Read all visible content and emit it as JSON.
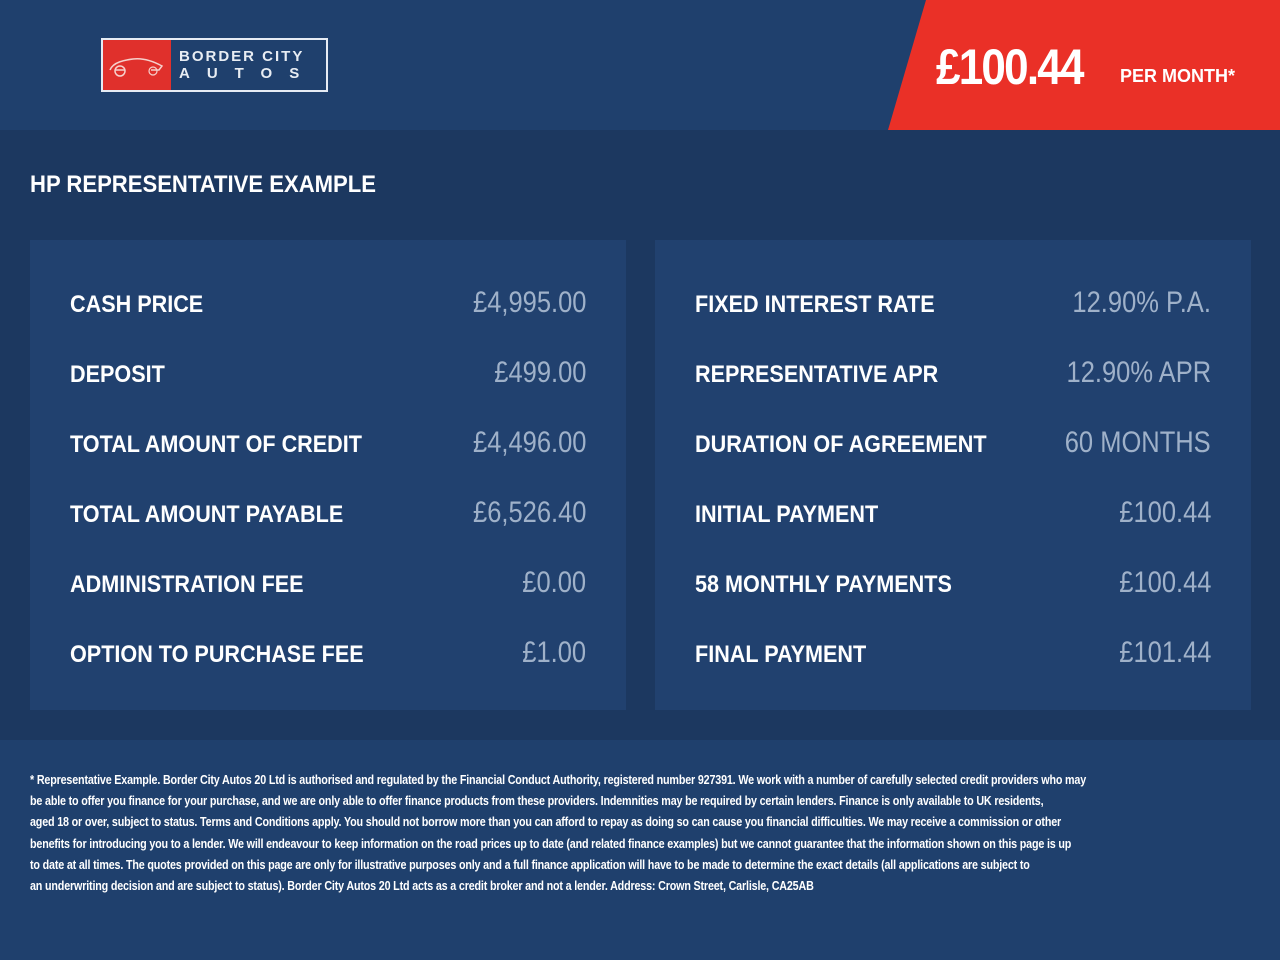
{
  "header": {
    "logo": {
      "line1": "BORDER CITY",
      "line2": "AUTOS"
    },
    "price": "£100.44",
    "price_suffix": "PER MONTH*"
  },
  "title": "HP REPRESENTATIVE EXAMPLE",
  "left_panel": [
    {
      "label": "CASH PRICE",
      "value": "£4,995.00"
    },
    {
      "label": "DEPOSIT",
      "value": "£499.00"
    },
    {
      "label": "TOTAL AMOUNT OF CREDIT",
      "value": "£4,496.00"
    },
    {
      "label": "TOTAL AMOUNT PAYABLE",
      "value": "£6,526.40"
    },
    {
      "label": "ADMINISTRATION FEE",
      "value": "£0.00"
    },
    {
      "label": "OPTION TO PURCHASE FEE",
      "value": "£1.00"
    }
  ],
  "right_panel": [
    {
      "label": "FIXED INTEREST RATE",
      "value": "12.90% P.A."
    },
    {
      "label": "REPRESENTATIVE APR",
      "value": "12.90% APR"
    },
    {
      "label": "DURATION OF AGREEMENT",
      "value": "60 MONTHS"
    },
    {
      "label": "INITIAL PAYMENT",
      "value": "£100.44"
    },
    {
      "label": "58 MONTHLY PAYMENTS",
      "value": "£100.44"
    },
    {
      "label": "FINAL PAYMENT",
      "value": "£101.44"
    }
  ],
  "disclaimer": [
    "* Representative Example. Border City Autos 20 Ltd is authorised and regulated by the Financial Conduct Authority, registered number 927391. We work with a number of carefully selected credit providers who may",
    "be able to offer you finance for your purchase, and we are only able to offer finance products from these providers. Indemnities may be required by certain lenders. Finance is only available to UK residents,",
    "aged 18 or over, subject to status. Terms and Conditions apply. You should not borrow more than you can afford to repay as doing so can cause you financial difficulties. We may receive a commission or other",
    "benefits for introducing you to a lender. We will endeavour to keep information on the road prices up to date (and related finance examples) but we cannot guarantee that the information shown on this page is up",
    "to date at all times. The quotes provided on this page are only for illustrative purposes only and a full finance application will have to be made to determine the exact details (all applications are subject to",
    "an underwriting decision and are subject to status). Border City Autos 20 Ltd acts as a credit broker and not a lender. Address: Crown Street, Carlisle, CA25AB"
  ],
  "colors": {
    "accent_red": "#ea3027",
    "panel": "#21416f",
    "value_text": "#9fb1c9"
  }
}
